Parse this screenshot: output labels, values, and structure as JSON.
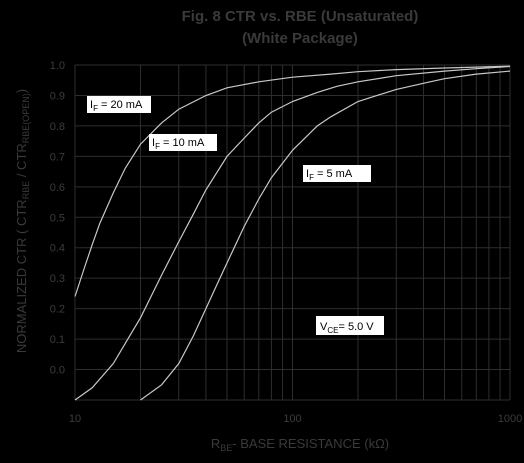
{
  "chart_data": {
    "type": "line",
    "title": "Fig. 8  CTR vs. RBE (Unsaturated)",
    "subtitle": "(White Package)",
    "ylabel_main": "NORMALIZED CTR ( CTR",
    "ylabel_sub1": "RBE",
    "ylabel_mid": " / CTR",
    "ylabel_sub2": "RBE(OPEN)",
    "ylabel_end": ")",
    "xlabel_r": "R",
    "xlabel_sub": "BE",
    "xlabel_rest": "- BASE RESISTANCE (kΩ)",
    "x_scale": "log",
    "xlim": [
      10,
      1000
    ],
    "ylim": [
      -0.1,
      1.0
    ],
    "x_ticks": [
      10,
      100,
      1000
    ],
    "x_tick_labels": [
      "10",
      "100",
      "1000"
    ],
    "y_ticks": [
      0.0,
      0.1,
      0.2,
      0.3,
      0.4,
      0.5,
      0.6,
      0.7,
      0.8,
      0.9,
      1.0
    ],
    "y_tick_labels": [
      "0.0",
      "0.1",
      "0.2",
      "0.3",
      "0.4",
      "0.5",
      "0.6",
      "0.7",
      "0.8",
      "0.9",
      "1.0"
    ],
    "grid": true,
    "series": [
      {
        "name": "IF = 20 mA",
        "label_main": "I",
        "label_sub": "F",
        "label_rest": "  = 20 mA",
        "x": [
          10,
          11,
          12,
          13,
          15,
          17,
          20,
          25,
          30,
          40,
          50,
          70,
          100,
          150,
          200,
          300,
          500,
          700,
          1000
        ],
        "y": [
          0.24,
          0.33,
          0.41,
          0.48,
          0.58,
          0.66,
          0.74,
          0.81,
          0.855,
          0.9,
          0.925,
          0.945,
          0.96,
          0.97,
          0.978,
          0.985,
          0.99,
          0.993,
          0.996
        ]
      },
      {
        "name": "IF = 10 mA",
        "label_main": "I",
        "label_sub": "F",
        "label_rest": "  = 10 mA",
        "x": [
          10,
          12,
          15,
          20,
          25,
          30,
          35,
          40,
          50,
          60,
          70,
          80,
          100,
          130,
          160,
          200,
          300,
          500,
          700,
          1000
        ],
        "y": [
          -0.1,
          -0.06,
          0.02,
          0.17,
          0.31,
          0.42,
          0.51,
          0.59,
          0.7,
          0.76,
          0.81,
          0.845,
          0.88,
          0.91,
          0.93,
          0.945,
          0.965,
          0.98,
          0.988,
          0.995
        ]
      },
      {
        "name": "IF = 5 mA",
        "label_main": "I",
        "label_sub": "F",
        "label_rest": " = 5 mA",
        "x": [
          20,
          25,
          30,
          35,
          40,
          45,
          50,
          60,
          70,
          80,
          100,
          130,
          150,
          200,
          300,
          400,
          500,
          700,
          1000
        ],
        "y": [
          -0.1,
          -0.05,
          0.02,
          0.11,
          0.2,
          0.28,
          0.35,
          0.47,
          0.56,
          0.63,
          0.72,
          0.8,
          0.83,
          0.88,
          0.92,
          0.94,
          0.955,
          0.97,
          0.98
        ]
      }
    ],
    "annotation": {
      "text_main": "V",
      "text_sub": "CE",
      "text_rest": "= 5.0 V"
    },
    "colors": {
      "background": "#000000",
      "grid": "#2e2e2e",
      "curve": "#c8c8c8",
      "label_box": "#ffffff",
      "text_dim": "#3a3a3a"
    }
  }
}
